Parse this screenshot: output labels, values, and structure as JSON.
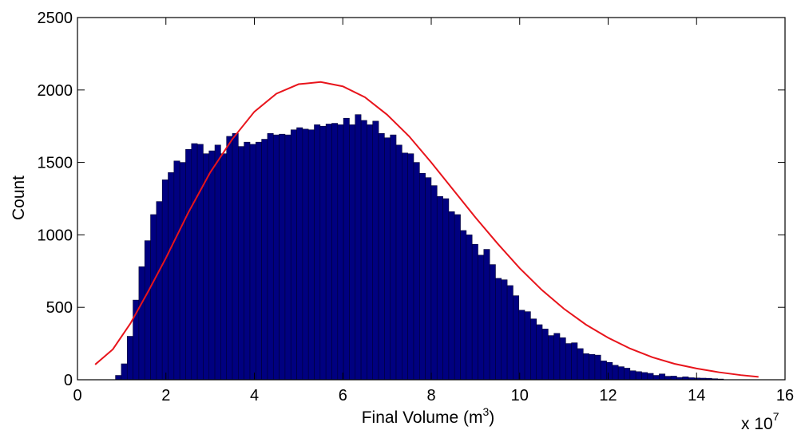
{
  "chart_data": {
    "type": "bar",
    "xlabel": "Final Volume (m",
    "xlabel_superscript": "3",
    "xlabel_suffix": ")",
    "ylabel": "Count",
    "x_exponent_base": "x 10",
    "x_exponent_power": "7",
    "xlim": [
      0,
      16
    ],
    "ylim": [
      0,
      2500
    ],
    "x_scale_factor": 10000000,
    "x_ticks": [
      0,
      2,
      4,
      6,
      8,
      10,
      12,
      14,
      16
    ],
    "y_ticks": [
      0,
      500,
      1000,
      1500,
      2000,
      2500
    ],
    "x_tick_labels": [
      "0",
      "2",
      "4",
      "6",
      "8",
      "10",
      "12",
      "14",
      "16"
    ],
    "y_tick_labels": [
      "0",
      "500",
      "1000",
      "1500",
      "2000",
      "2500"
    ],
    "histogram": {
      "bin_start": 0.86,
      "bin_width": 0.1322,
      "counts": [
        30,
        110,
        300,
        550,
        780,
        960,
        1140,
        1230,
        1380,
        1430,
        1510,
        1500,
        1590,
        1630,
        1625,
        1560,
        1580,
        1620,
        1560,
        1680,
        1700,
        1610,
        1640,
        1625,
        1640,
        1660,
        1700,
        1690,
        1695,
        1690,
        1725,
        1740,
        1730,
        1725,
        1760,
        1750,
        1765,
        1770,
        1760,
        1805,
        1760,
        1830,
        1790,
        1760,
        1785,
        1700,
        1670,
        1690,
        1620,
        1565,
        1560,
        1500,
        1425,
        1395,
        1340,
        1265,
        1250,
        1160,
        1140,
        1030,
        1000,
        935,
        860,
        900,
        795,
        700,
        690,
        650,
        580,
        480,
        470,
        420,
        380,
        350,
        305,
        320,
        290,
        250,
        255,
        215,
        180,
        175,
        170,
        130,
        120,
        100,
        90,
        80,
        62,
        56,
        50,
        44,
        30,
        40,
        24,
        25,
        16,
        20,
        14,
        12,
        11,
        10,
        7,
        5
      ],
      "color": "#000080",
      "edge_color": "#000033"
    },
    "fit_curve": {
      "type": "fitted distribution",
      "color": "#e8141b",
      "x": [
        0.4,
        0.8,
        1.2,
        1.6,
        2.0,
        2.5,
        3.0,
        3.5,
        4.0,
        4.5,
        5.0,
        5.5,
        6.0,
        6.5,
        7.0,
        7.5,
        8.0,
        8.5,
        9.0,
        9.5,
        10.0,
        10.5,
        11.0,
        11.5,
        12.0,
        12.5,
        13.0,
        13.5,
        14.0,
        14.5,
        15.0,
        15.4
      ],
      "y": [
        105,
        210,
        390,
        610,
        840,
        1150,
        1430,
        1660,
        1850,
        1975,
        2040,
        2055,
        2025,
        1950,
        1830,
        1680,
        1500,
        1310,
        1120,
        940,
        770,
        620,
        490,
        380,
        290,
        215,
        155,
        110,
        78,
        52,
        32,
        20
      ]
    }
  }
}
